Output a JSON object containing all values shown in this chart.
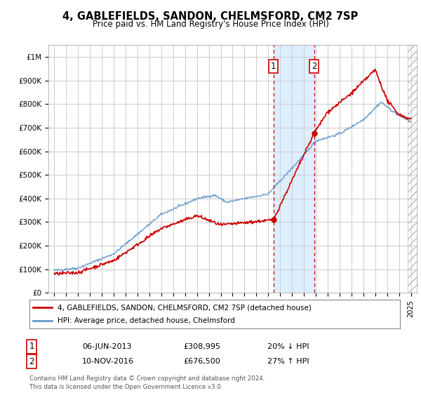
{
  "title": "4, GABLEFIELDS, SANDON, CHELMSFORD, CM2 7SP",
  "subtitle": "Price paid vs. HM Land Registry's House Price Index (HPI)",
  "ylabel_ticks": [
    "£0",
    "£100K",
    "£200K",
    "£300K",
    "£400K",
    "£500K",
    "£600K",
    "£700K",
    "£800K",
    "£900K",
    "£1M"
  ],
  "ytick_values": [
    0,
    100000,
    200000,
    300000,
    400000,
    500000,
    600000,
    700000,
    800000,
    900000,
    1000000
  ],
  "ylim": [
    0,
    1050000
  ],
  "xlim_min": 1994.5,
  "xlim_max": 2025.5,
  "sale1_date": 2013.43,
  "sale1_price": 308995,
  "sale2_date": 2016.86,
  "sale2_price": 676500,
  "legend_line1": "4, GABLEFIELDS, SANDON, CHELMSFORD, CM2 7SP (detached house)",
  "legend_line2": "HPI: Average price, detached house, Chelmsford",
  "row1_label": "1",
  "row1_date": "06-JUN-2013",
  "row1_price": "£308,995",
  "row1_pct": "20% ↓ HPI",
  "row2_label": "2",
  "row2_date": "10-NOV-2016",
  "row2_price": "£676,500",
  "row2_pct": "27% ↑ HPI",
  "footer_line1": "Contains HM Land Registry data © Crown copyright and database right 2024.",
  "footer_line2": "This data is licensed under the Open Government Licence v3.0.",
  "price_paid_color": "#cc0000",
  "hpi_color": "#6699cc",
  "shaded_region_color": "#ddeeff",
  "dashed_line_color": "#cc0000",
  "background_color": "#ffffff",
  "grid_color": "#cccccc",
  "hatch_color": "#bbbbbb"
}
